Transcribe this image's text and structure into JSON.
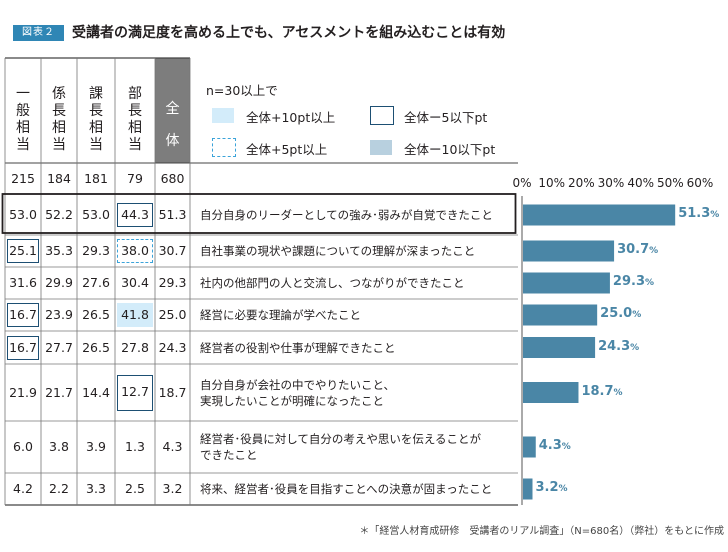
{
  "figure_tag": "図表２",
  "title": "受講者の満足度を高める上でも、アセスメントを組み込むことは有効",
  "legend": {
    "n_note": "n=30以上で",
    "items": [
      {
        "text": "全体+10pt以上",
        "style": "light-fill",
        "color": "#d3ecfa"
      },
      {
        "text": "全体ー5以下pt",
        "style": "dark-frame",
        "color": "#1d4f73"
      },
      {
        "text": "全体+5pt以上",
        "style": "dashed-frame",
        "color": "#3ba3d9"
      },
      {
        "text": "全体ー10以下pt",
        "style": "grey-fill",
        "color": "#b8d0df"
      }
    ]
  },
  "footnote": "＊「経営人材育成研修　受講者のリアル調査」（N=680名）（弊社）をもとに作成",
  "colors": {
    "bar": "#4a86a6",
    "header_all": "#7d7d7d",
    "value_label": "#4a86a6"
  },
  "chart_data": {
    "type": "table",
    "columns": [
      {
        "label": "一般相当",
        "n": "215"
      },
      {
        "label": "係長相当",
        "n": "184"
      },
      {
        "label": "課長相当",
        "n": "181"
      },
      {
        "label": "部長相当",
        "n": "79"
      },
      {
        "label": "全体",
        "n": "680"
      }
    ],
    "rows": [
      {
        "label": [
          "自分自身のリーダーとしての強み･弱みが自覚できたこと"
        ],
        "values": [
          "53.0",
          "52.2",
          "53.0",
          "44.3",
          "51.3"
        ],
        "marks": [
          "",
          "",
          "",
          "dark-frame",
          ""
        ],
        "total": 51.3
      },
      {
        "label": [
          "自社事業の現状や課題についての理解が深まったこと"
        ],
        "values": [
          "25.1",
          "35.3",
          "29.3",
          "38.0",
          "30.7"
        ],
        "marks": [
          "dark-frame",
          "",
          "",
          "dashed-frame",
          ""
        ],
        "total": 30.7
      },
      {
        "label": [
          "社内の他部門の人と交流し、つながりができたこと"
        ],
        "values": [
          "31.6",
          "29.9",
          "27.6",
          "30.4",
          "29.3"
        ],
        "marks": [
          "",
          "",
          "",
          "",
          ""
        ],
        "total": 29.3
      },
      {
        "label": [
          "経営に必要な理論が学べたこと"
        ],
        "values": [
          "16.7",
          "23.9",
          "26.5",
          "41.8",
          "25.0"
        ],
        "marks": [
          "dark-frame",
          "",
          "",
          "light-fill",
          ""
        ],
        "total": 25.0
      },
      {
        "label": [
          "経営者の役割や仕事が理解できたこと"
        ],
        "values": [
          "16.7",
          "27.7",
          "26.5",
          "27.8",
          "24.3"
        ],
        "marks": [
          "dark-frame",
          "",
          "",
          "",
          ""
        ],
        "total": 24.3
      },
      {
        "label": [
          "自分自身が会社の中でやりたいこと、",
          "実現したいことが明確になったこと"
        ],
        "values": [
          "21.9",
          "21.7",
          "14.4",
          "12.7",
          "18.7"
        ],
        "marks": [
          "",
          "",
          "",
          "dark-frame",
          ""
        ],
        "total": 18.7
      },
      {
        "label": [
          "経営者･役員に対して自分の考えや思いを伝えることが",
          "できたこと"
        ],
        "values": [
          "6.0",
          "3.8",
          "3.9",
          "1.3",
          "4.3"
        ],
        "marks": [
          "",
          "",
          "",
          "",
          ""
        ],
        "total": 4.3
      },
      {
        "label": [
          "将来、経営者･役員を目指すことへの決意が固まったこと"
        ],
        "values": [
          "4.2",
          "2.2",
          "3.3",
          "2.5",
          "3.2"
        ],
        "marks": [
          "",
          "",
          "",
          "",
          ""
        ],
        "total": 3.2
      }
    ],
    "bar_axis": {
      "ticks": [
        "0%",
        "10%",
        "20%",
        "30%",
        "40%",
        "50%",
        "60%"
      ],
      "min": 0,
      "max": 60
    },
    "value_unit": "%",
    "highlighted_row": 0,
    "grid": false
  }
}
